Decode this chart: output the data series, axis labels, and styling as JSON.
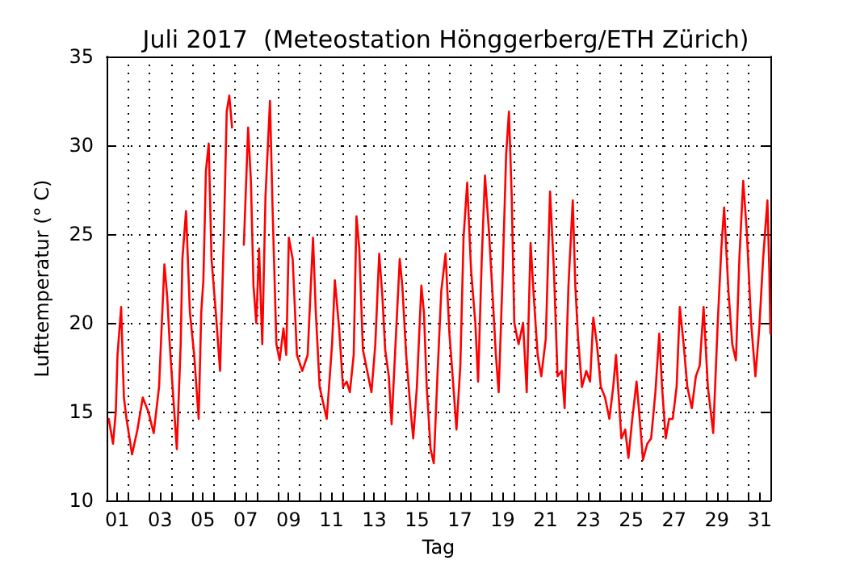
{
  "chart_data": {
    "type": "line",
    "title": "Juli 2017  (Meteostation Hönggerberg/ETH Zürich)",
    "xlabel": "Tag",
    "ylabel": "Lufttemperatur (° C)",
    "xlim": [
      1,
      32
    ],
    "ylim": [
      10,
      35
    ],
    "yticks": [
      10,
      15,
      20,
      25,
      30,
      35
    ],
    "xticks": [
      {
        "value": 1.5,
        "label": "01"
      },
      {
        "value": 3.5,
        "label": "03"
      },
      {
        "value": 5.5,
        "label": "05"
      },
      {
        "value": 7.5,
        "label": "07"
      },
      {
        "value": 9.5,
        "label": "09"
      },
      {
        "value": 11.5,
        "label": "11"
      },
      {
        "value": 13.5,
        "label": "13"
      },
      {
        "value": 15.5,
        "label": "15"
      },
      {
        "value": 17.5,
        "label": "17"
      },
      {
        "value": 19.5,
        "label": "19"
      },
      {
        "value": 21.5,
        "label": "21"
      },
      {
        "value": 23.5,
        "label": "23"
      },
      {
        "value": 25.5,
        "label": "25"
      },
      {
        "value": 27.5,
        "label": "27"
      },
      {
        "value": 29.5,
        "label": "29"
      },
      {
        "value": 31.5,
        "label": "31"
      },
      {
        "value": 2,
        "label": null
      },
      {
        "value": 3,
        "label": null
      },
      {
        "value": 4,
        "label": null
      },
      {
        "value": 5,
        "label": null
      },
      {
        "value": 6,
        "label": null
      },
      {
        "value": 7,
        "label": null
      },
      {
        "value": 8,
        "label": null
      },
      {
        "value": 9,
        "label": null
      },
      {
        "value": 10,
        "label": null
      },
      {
        "value": 11,
        "label": null
      },
      {
        "value": 12,
        "label": null
      },
      {
        "value": 13,
        "label": null
      },
      {
        "value": 14,
        "label": null
      },
      {
        "value": 15,
        "label": null
      },
      {
        "value": 16,
        "label": null
      },
      {
        "value": 17,
        "label": null
      },
      {
        "value": 18,
        "label": null
      },
      {
        "value": 19,
        "label": null
      },
      {
        "value": 20,
        "label": null
      },
      {
        "value": 21,
        "label": null
      },
      {
        "value": 22,
        "label": null
      },
      {
        "value": 23,
        "label": null
      },
      {
        "value": 24,
        "label": null
      },
      {
        "value": 25,
        "label": null
      },
      {
        "value": 26,
        "label": null
      },
      {
        "value": 27,
        "label": null
      },
      {
        "value": 28,
        "label": null
      },
      {
        "value": 29,
        "label": null
      },
      {
        "value": 30,
        "label": null
      },
      {
        "value": 31,
        "label": null
      }
    ],
    "grid": true,
    "marker": "none",
    "line_style": "solid",
    "series": [
      {
        "color": "#ff0000",
        "x": [
          1.1,
          1.3,
          1.43,
          1.51,
          1.68,
          1.76,
          1.81,
          1.93,
          2.19,
          2.44,
          2.69,
          2.95,
          3.2,
          3.45,
          3.58,
          3.7,
          3.83,
          3.95,
          4.08,
          4.28,
          4.46,
          4.54,
          4.71,
          4.89,
          5.09,
          5.3,
          5.42,
          5.52,
          5.64,
          5.77,
          5.9,
          6.1,
          6.3,
          6.48,
          6.61,
          6.73,
          6.86,
          7.1,
          7.41,
          7.61,
          7.74,
          7.86,
          7.99,
          8.12,
          8.27,
          8.42,
          8.63,
          8.75,
          8.93,
          9.08,
          9.26,
          9.39,
          9.51,
          9.69,
          9.89,
          10.14,
          10.39,
          10.64,
          10.77,
          10.95,
          11.28,
          11.53,
          11.66,
          11.86,
          12.04,
          12.21,
          12.36,
          12.54,
          12.67,
          12.8,
          12.97,
          13.17,
          13.37,
          13.55,
          13.73,
          13.88,
          14.01,
          14.18,
          14.31,
          14.48,
          14.69,
          14.81,
          14.99,
          15.19,
          15.32,
          15.49,
          15.7,
          15.82,
          15.95,
          16.13,
          16.28,
          16.45,
          16.63,
          16.83,
          17.01,
          17.16,
          17.34,
          17.52,
          17.67,
          17.84,
          18.02,
          18.22,
          18.35,
          18.52,
          18.67,
          18.86,
          19.03,
          19.18,
          19.31,
          19.48,
          19.66,
          19.79,
          19.92,
          20.04,
          20.24,
          20.45,
          20.62,
          20.8,
          20.95,
          21.13,
          21.3,
          21.51,
          21.71,
          21.89,
          22.06,
          22.26,
          22.39,
          22.57,
          22.77,
          22.89,
          23.02,
          23.2,
          23.4,
          23.58,
          23.73,
          23.9,
          24.08,
          24.28,
          24.48,
          24.66,
          24.79,
          24.92,
          25.04,
          25.22,
          25.37,
          25.55,
          25.75,
          25.87,
          26.05,
          26.25,
          26.43,
          26.63,
          26.81,
          26.94,
          27.11,
          27.27,
          27.44,
          27.62,
          27.77,
          27.95,
          28.12,
          28.33,
          28.52,
          28.7,
          28.88,
          29.08,
          29.33,
          29.54,
          29.71,
          29.84,
          30.04,
          30.22,
          30.39,
          30.55,
          30.73,
          30.9,
          31.1,
          31.3,
          31.48,
          31.66,
          31.86,
          31.95,
          32.0
        ],
        "values": [
          14.6,
          13.2,
          15,
          18.2,
          20.9,
          17.6,
          15.8,
          14.6,
          12.6,
          14,
          15.8,
          15,
          13.8,
          16.4,
          20,
          23.3,
          21.5,
          18.8,
          16.4,
          12.9,
          18.8,
          23.6,
          26.3,
          20.6,
          18.2,
          14.6,
          20.6,
          22.4,
          28.6,
          30.1,
          23.6,
          20.6,
          17.3,
          25.1,
          31.9,
          32.8,
          31,
          null,
          24.4,
          31,
          28,
          22.1,
          20,
          24.2,
          18.8,
          27.1,
          32.5,
          26.5,
          18.8,
          17.9,
          19.7,
          18.2,
          24.8,
          23.6,
          18.2,
          17.3,
          18.2,
          24.8,
          20.6,
          16.4,
          14.6,
          18.8,
          22.4,
          19.7,
          16.4,
          16.7,
          16.1,
          18.2,
          26,
          24.2,
          18.5,
          17.3,
          16.1,
          18.8,
          23.9,
          21.5,
          18.5,
          17,
          14.3,
          18.5,
          23.6,
          22.1,
          18.2,
          15.2,
          13.5,
          16.4,
          22.1,
          20.6,
          16.4,
          12.9,
          12.1,
          17,
          21.8,
          23.9,
          19.4,
          17,
          14,
          17.6,
          24.8,
          27.9,
          23,
          20,
          16.7,
          23.6,
          28.3,
          25.1,
          21.5,
          18.2,
          16.1,
          22.1,
          29.5,
          31.9,
          27.1,
          20,
          18.8,
          20,
          16.1,
          24.5,
          21.5,
          18.2,
          17,
          19.1,
          27.4,
          23,
          17,
          17.3,
          15.2,
          22.1,
          26.9,
          22.1,
          19.1,
          16.4,
          17.3,
          16.7,
          20.3,
          18.8,
          16.4,
          15.8,
          14.6,
          16.4,
          18.2,
          15.8,
          13.5,
          14,
          12.4,
          14.6,
          16.7,
          15,
          12.3,
          13.2,
          13.5,
          16.1,
          19.4,
          16.4,
          13.5,
          14.6,
          14.6,
          16.4,
          20.9,
          18.8,
          16.4,
          15.2,
          17,
          17.6,
          20.9,
          16.4,
          13.8,
          20,
          24.2,
          26.5,
          21.8,
          18.8,
          17.9,
          23.6,
          28,
          25.1,
          20,
          17,
          19.7,
          23.6,
          26.9,
          23,
          19.4
        ]
      }
    ]
  }
}
